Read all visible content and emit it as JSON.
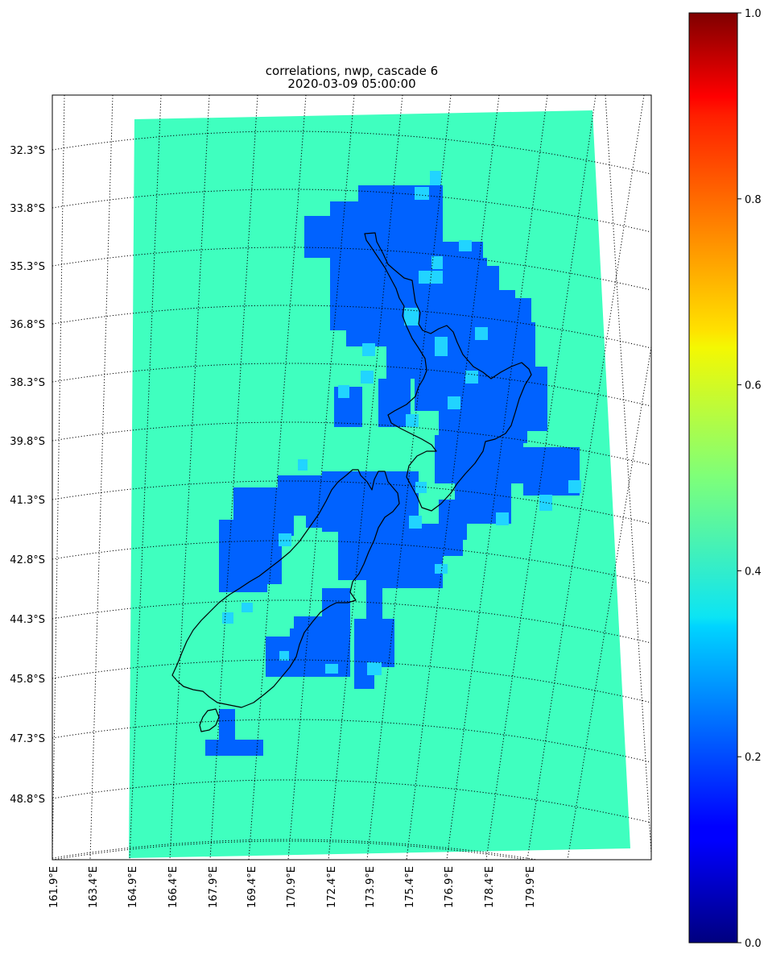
{
  "title": {
    "line1": "correlations, nwp, cascade 6",
    "line2": "2020-03-09 05:00:00"
  },
  "map": {
    "lat_labels": [
      "32.3°S",
      "33.8°S",
      "35.3°S",
      "36.8°S",
      "38.3°S",
      "39.8°S",
      "41.3°S",
      "42.8°S",
      "44.3°S",
      "45.8°S",
      "47.3°S",
      "48.8°S"
    ],
    "lon_labels": [
      "161.9°E",
      "163.4°E",
      "164.9°E",
      "166.4°E",
      "167.9°E",
      "169.4°E",
      "170.9°E",
      "172.4°E",
      "173.9°E",
      "175.4°E",
      "176.9°E",
      "178.4°E",
      "179.9°E"
    ],
    "background_value": 0.42,
    "background_color": "#3fffbf",
    "low_color": "#0062ff",
    "mid_color": "#21d4ff",
    "gridline_style": "dotted",
    "coastline_color": "#000000"
  },
  "colorbar": {
    "colormap": "jet",
    "min": 0.0,
    "max": 1.0,
    "ticks": [
      "0.0",
      "0.2",
      "0.4",
      "0.6",
      "0.8",
      "1.0"
    ]
  }
}
